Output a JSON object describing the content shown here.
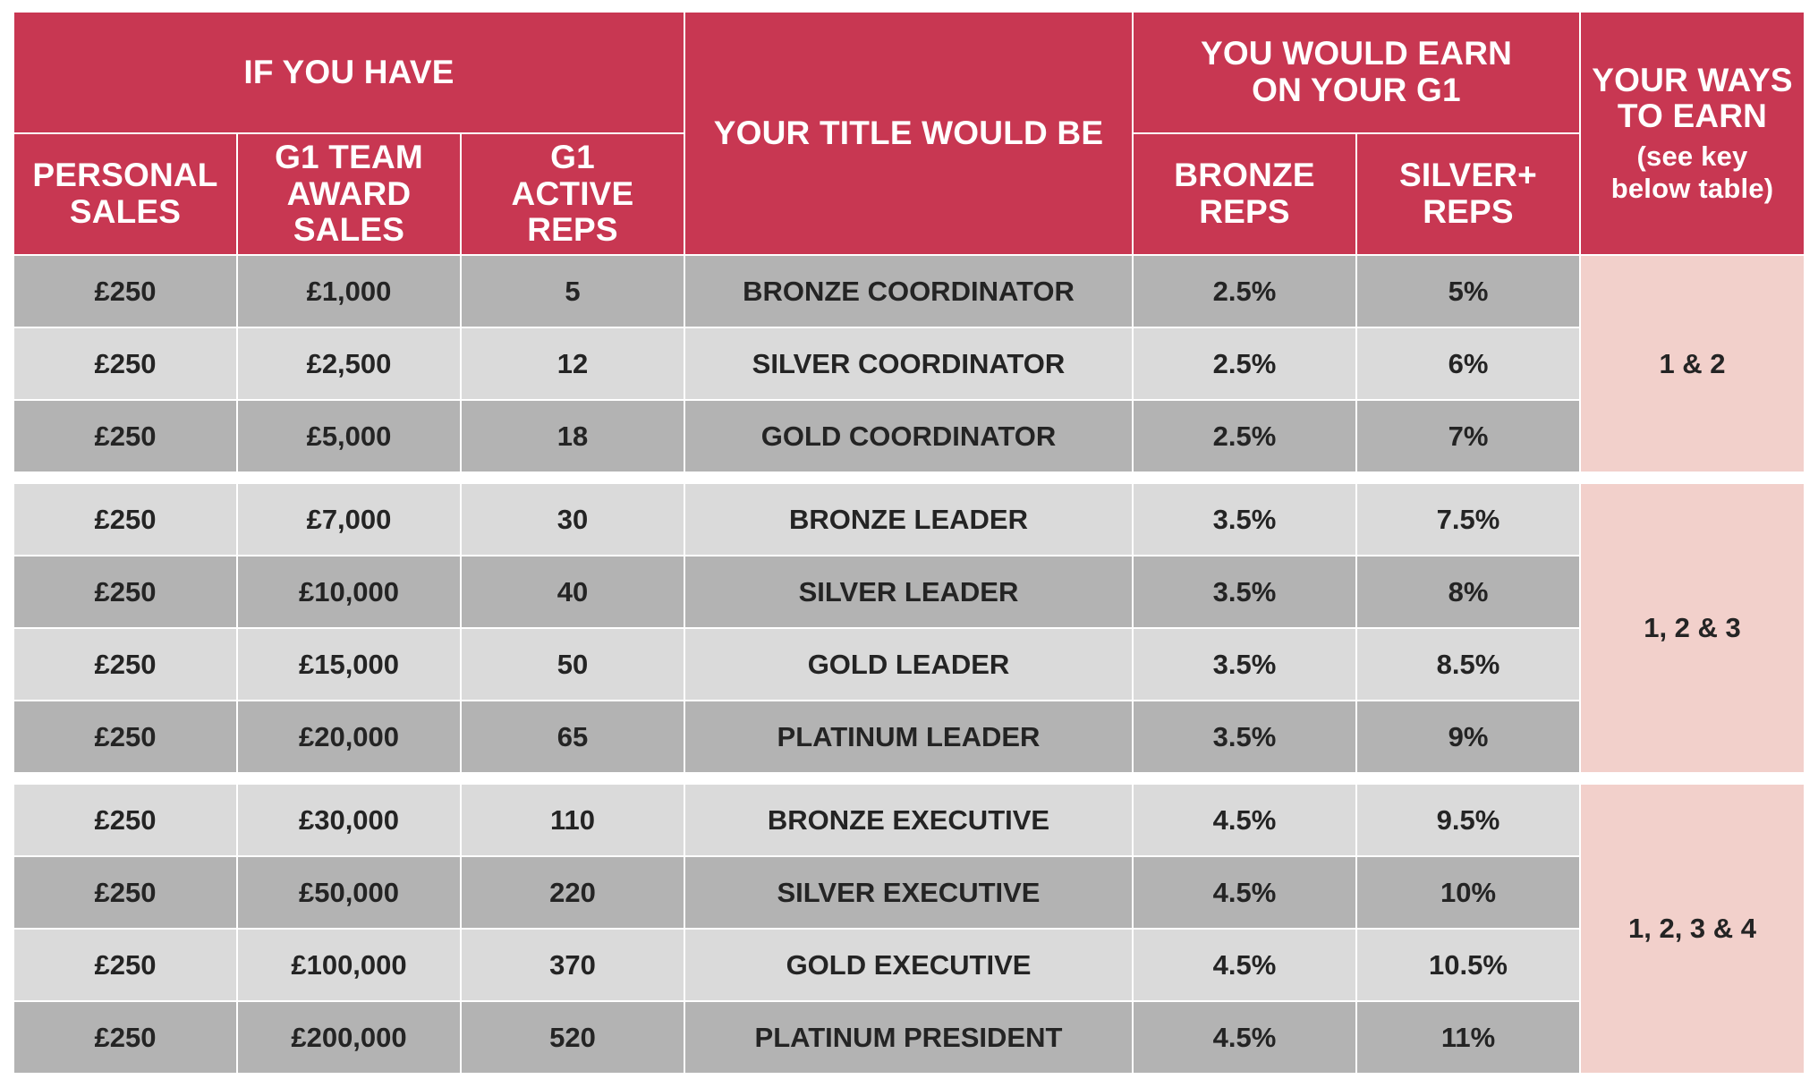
{
  "header": {
    "if_you_have": "IF YOU HAVE",
    "personal_sales": [
      "PERSONAL",
      "SALES"
    ],
    "g1_team_award_sales": [
      "G1 TEAM",
      "AWARD",
      "SALES"
    ],
    "g1_active_reps": [
      "G1",
      "ACTIVE REPS"
    ],
    "your_title": "YOUR TITLE WOULD BE",
    "you_would_earn": [
      "YOU WOULD EARN",
      "ON YOUR G1"
    ],
    "bronze_reps": [
      "BRONZE",
      "REPS"
    ],
    "silver_reps": [
      "SILVER+",
      "REPS"
    ],
    "ways_to_earn": [
      "YOUR WAYS",
      "TO EARN"
    ],
    "ways_note": [
      "(see key",
      "below table)"
    ]
  },
  "groups": [
    {
      "ways": "1 & 2",
      "rows": [
        {
          "personal": "£250",
          "team": "£1,000",
          "reps": "5",
          "title": "BRONZE COORDINATOR",
          "bronze": "2.5%",
          "silver": "5%"
        },
        {
          "personal": "£250",
          "team": "£2,500",
          "reps": "12",
          "title": "SILVER COORDINATOR",
          "bronze": "2.5%",
          "silver": "6%"
        },
        {
          "personal": "£250",
          "team": "£5,000",
          "reps": "18",
          "title": "GOLD COORDINATOR",
          "bronze": "2.5%",
          "silver": "7%"
        }
      ]
    },
    {
      "ways": "1, 2 & 3",
      "rows": [
        {
          "personal": "£250",
          "team": "£7,000",
          "reps": "30",
          "title": "BRONZE LEADER",
          "bronze": "3.5%",
          "silver": "7.5%"
        },
        {
          "personal": "£250",
          "team": "£10,000",
          "reps": "40",
          "title": "SILVER LEADER",
          "bronze": "3.5%",
          "silver": "8%"
        },
        {
          "personal": "£250",
          "team": "£15,000",
          "reps": "50",
          "title": "GOLD LEADER",
          "bronze": "3.5%",
          "silver": "8.5%"
        },
        {
          "personal": "£250",
          "team": "£20,000",
          "reps": "65",
          "title": "PLATINUM LEADER",
          "bronze": "3.5%",
          "silver": "9%"
        }
      ]
    },
    {
      "ways": "1, 2, 3 & 4",
      "rows": [
        {
          "personal": "£250",
          "team": "£30,000",
          "reps": "110",
          "title": "BRONZE EXECUTIVE",
          "bronze": "4.5%",
          "silver": "9.5%"
        },
        {
          "personal": "£250",
          "team": "£50,000",
          "reps": "220",
          "title": "SILVER EXECUTIVE",
          "bronze": "4.5%",
          "silver": "10%"
        },
        {
          "personal": "£250",
          "team": "£100,000",
          "reps": "370",
          "title": "GOLD EXECUTIVE",
          "bronze": "4.5%",
          "silver": "10.5%"
        },
        {
          "personal": "£250",
          "team": "£200,000",
          "reps": "520",
          "title": "PLATINUM  PRESIDENT",
          "bronze": "4.5%",
          "silver": "11%"
        }
      ]
    }
  ],
  "colors": {
    "header_bg": "#c83752",
    "header_text": "#ffffff",
    "row_dark": "#b3b3b3",
    "row_light": "#dadada",
    "ways_bg": "#f2d0cb",
    "body_text": "#242424"
  }
}
